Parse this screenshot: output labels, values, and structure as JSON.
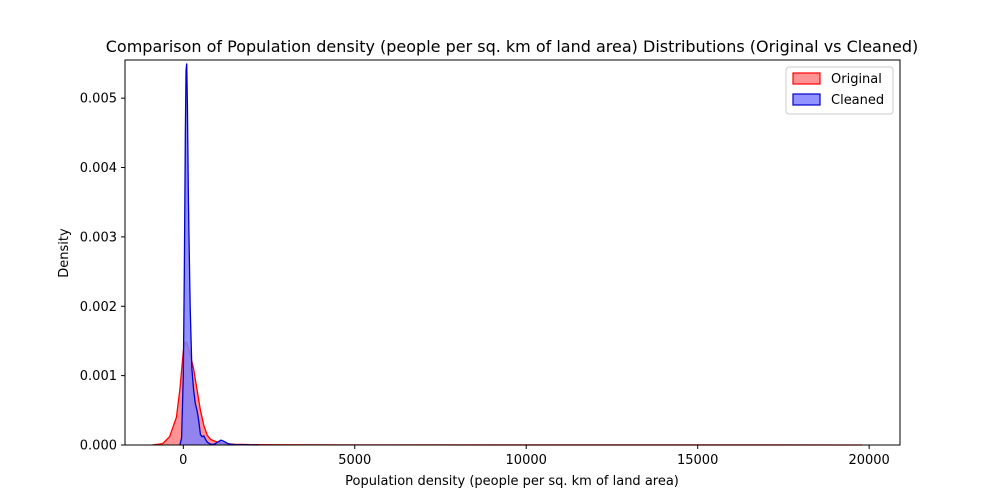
{
  "chart_data": {
    "type": "area",
    "title": "Comparison of Population density (people per sq. km of land area) Distributions (Original vs Cleaned)",
    "xlabel": "Population density (people per sq. km of land area)",
    "ylabel": "Density",
    "xlim": [
      -1700,
      20900
    ],
    "ylim": [
      0,
      0.00555
    ],
    "x_ticks": [
      0,
      5000,
      10000,
      15000,
      20000
    ],
    "x_tick_labels": [
      "0",
      "5000",
      "10000",
      "15000",
      "20000"
    ],
    "y_ticks": [
      0,
      0.001,
      0.002,
      0.003,
      0.004,
      0.005
    ],
    "y_tick_labels": [
      "0.000",
      "0.001",
      "0.002",
      "0.003",
      "0.004",
      "0.005"
    ],
    "grid": false,
    "legend_position": "top-right",
    "series": [
      {
        "name": "Original",
        "line_color": "#ff0000",
        "fill_color": "#ff8080",
        "x": [
          -900,
          -600,
          -400,
          -200,
          -100,
          0,
          50,
          100,
          200,
          300,
          400,
          500,
          600,
          700,
          800,
          1000,
          1200,
          1500,
          2000,
          3000,
          5000,
          10000,
          15000,
          19800
        ],
        "y": [
          0,
          2e-05,
          0.00012,
          0.0004,
          0.0008,
          0.00135,
          0.00148,
          0.00148,
          0.0013,
          0.0011,
          0.0008,
          0.0005,
          0.00028,
          0.00014,
          8e-05,
          4e-05,
          2e-05,
          1e-05,
          5e-06,
          3e-06,
          2e-06,
          1e-06,
          1e-06,
          0
        ]
      },
      {
        "name": "Cleaned",
        "line_color": "#0000cc",
        "fill_color": "#8080ff",
        "x": [
          -100,
          -50,
          0,
          30,
          60,
          80,
          100,
          120,
          150,
          200,
          250,
          300,
          350,
          400,
          450,
          500,
          550,
          600,
          650,
          700,
          800,
          900,
          1000,
          1100,
          1200,
          1300,
          1400,
          1500,
          1700,
          2000,
          2200
        ],
        "y": [
          0,
          0.0001,
          0.001,
          0.0025,
          0.0045,
          0.0054,
          0.0055,
          0.0049,
          0.0035,
          0.002,
          0.0011,
          0.0008,
          0.0006,
          0.0005,
          0.00035,
          0.00015,
          0.00012,
          0.00013,
          8e-05,
          4e-05,
          1e-05,
          1e-05,
          4e-05,
          7e-05,
          5e-05,
          2e-05,
          1e-05,
          5e-06,
          3e-06,
          2e-06,
          0
        ]
      }
    ]
  }
}
